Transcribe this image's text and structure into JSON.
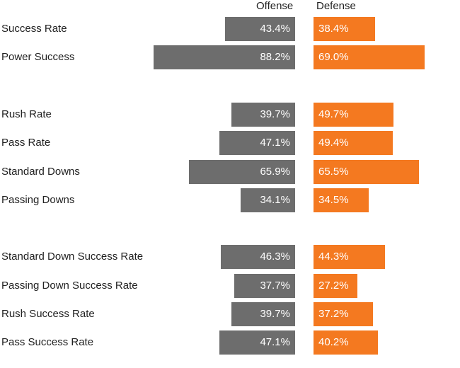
{
  "colors": {
    "offense": "#6d6d6d",
    "defense": "#f47920"
  },
  "chart_data": {
    "type": "bar",
    "orientation": "horizontal-diverging",
    "xlim": [
      0,
      100
    ],
    "headers": {
      "offense": "Offense",
      "defense": "Defense"
    },
    "groups": [
      {
        "rows": [
          {
            "label": "Success Rate",
            "offense": 43.4,
            "defense": 38.4,
            "offense_label": "43.4%",
            "defense_label": "38.4%"
          },
          {
            "label": "Power Success",
            "offense": 88.2,
            "defense": 69.0,
            "offense_label": "88.2%",
            "defense_label": "69.0%"
          }
        ]
      },
      {
        "rows": [
          {
            "label": "Rush Rate",
            "offense": 39.7,
            "defense": 49.7,
            "offense_label": "39.7%",
            "defense_label": "49.7%"
          },
          {
            "label": "Pass Rate",
            "offense": 47.1,
            "defense": 49.4,
            "offense_label": "47.1%",
            "defense_label": "49.4%"
          },
          {
            "label": "Standard Downs",
            "offense": 65.9,
            "defense": 65.5,
            "offense_label": "65.9%",
            "defense_label": "65.5%"
          },
          {
            "label": "Passing Downs",
            "offense": 34.1,
            "defense": 34.5,
            "offense_label": "34.1%",
            "defense_label": "34.5%"
          }
        ]
      },
      {
        "rows": [
          {
            "label": "Standard Down Success Rate",
            "offense": 46.3,
            "defense": 44.3,
            "offense_label": "46.3%",
            "defense_label": "44.3%"
          },
          {
            "label": "Passing Down Success Rate",
            "offense": 37.7,
            "defense": 27.2,
            "offense_label": "37.7%",
            "defense_label": "27.2%"
          },
          {
            "label": "Rush Success Rate",
            "offense": 39.7,
            "defense": 37.2,
            "offense_label": "39.7%",
            "defense_label": "37.2%"
          },
          {
            "label": "Pass Success Rate",
            "offense": 47.1,
            "defense": 40.2,
            "offense_label": "47.1%",
            "defense_label": "40.2%"
          }
        ]
      }
    ]
  }
}
